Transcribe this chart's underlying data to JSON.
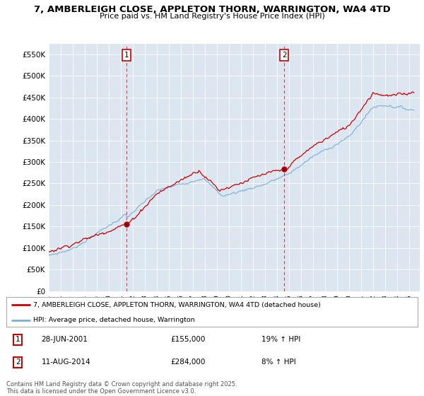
{
  "title": "7, AMBERLEIGH CLOSE, APPLETON THORN, WARRINGTON, WA4 4TD",
  "subtitle": "Price paid vs. HM Land Registry's House Price Index (HPI)",
  "ylabel_ticks": [
    "£0",
    "£50K",
    "£100K",
    "£150K",
    "£200K",
    "£250K",
    "£300K",
    "£350K",
    "£400K",
    "£450K",
    "£500K",
    "£550K"
  ],
  "ytick_values": [
    0,
    50000,
    100000,
    150000,
    200000,
    250000,
    300000,
    350000,
    400000,
    450000,
    500000,
    550000
  ],
  "ylim": [
    0,
    575000
  ],
  "background_color": "#dce6f1",
  "red_line_color": "#cc0000",
  "blue_line_color": "#7bafd4",
  "vline_color": "#cc0000",
  "sale1_year": 2001.49,
  "sale1_price": 155000,
  "sale2_year": 2014.61,
  "sale2_price": 284000,
  "legend_line1": "7, AMBERLEIGH CLOSE, APPLETON THORN, WARRINGTON, WA4 4TD (detached house)",
  "legend_line2": "HPI: Average price, detached house, Warrington",
  "note1_box": "1",
  "note1_date": "28-JUN-2001",
  "note1_price": "£155,000",
  "note1_hpi": "19% ↑ HPI",
  "note2_box": "2",
  "note2_date": "11-AUG-2014",
  "note2_price": "£284,000",
  "note2_hpi": "8% ↑ HPI",
  "footer": "Contains HM Land Registry data © Crown copyright and database right 2025.\nThis data is licensed under the Open Government Licence v3.0.",
  "xmin": 1995.0,
  "xmax": 2025.9
}
